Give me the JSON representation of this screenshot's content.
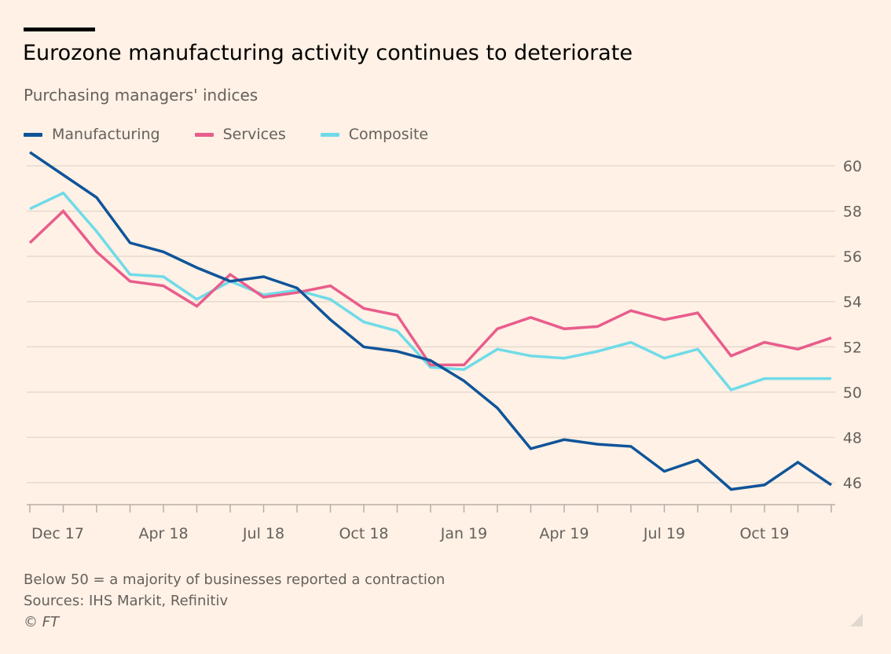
{
  "header": {
    "title": "Eurozone manufacturing activity continues to deteriorate",
    "subtitle": "Purchasing managers' indices"
  },
  "colors": {
    "background": "#fff1e5",
    "manufacturing": "#0f5499",
    "services": "#e85d8c",
    "composite": "#6fdbe8",
    "grid": "#e6d9ce",
    "axis": "#b8aea6"
  },
  "chart_data": {
    "type": "line",
    "title": "Eurozone manufacturing activity continues to deteriorate",
    "subtitle": "Purchasing managers' indices",
    "xlabel": "",
    "ylabel": "",
    "ylim": [
      45,
      61
    ],
    "y_ticks": [
      60,
      58,
      56,
      54,
      52,
      50,
      48,
      46
    ],
    "x": [
      "Dec 17",
      "Jan 18",
      "Feb 18",
      "Mar 18",
      "Apr 18",
      "May 18",
      "Jun 18",
      "Jul 18",
      "Aug 18",
      "Sep 18",
      "Oct 18",
      "Nov 18",
      "Dec 18",
      "Jan 19",
      "Feb 19",
      "Mar 19",
      "Apr 19",
      "May 19",
      "Jun 19",
      "Jul 19",
      "Aug 19",
      "Sep 19",
      "Oct 19",
      "Nov 19",
      "Dec 19"
    ],
    "x_tick_labels": [
      {
        "index": 0,
        "label": "Dec 17"
      },
      {
        "index": 4,
        "label": "Apr 18"
      },
      {
        "index": 7,
        "label": "Jul 18"
      },
      {
        "index": 10,
        "label": "Oct 18"
      },
      {
        "index": 13,
        "label": "Jan 19"
      },
      {
        "index": 16,
        "label": "Apr 19"
      },
      {
        "index": 19,
        "label": "Jul 19"
      },
      {
        "index": 22,
        "label": "Oct 19"
      }
    ],
    "legend": "top-left",
    "grid": true,
    "series": [
      {
        "name": "Manufacturing",
        "key": "manufacturing",
        "values": [
          60.6,
          59.6,
          58.6,
          56.6,
          56.2,
          55.5,
          54.9,
          55.1,
          54.6,
          53.2,
          52.0,
          51.8,
          51.4,
          50.5,
          49.3,
          47.5,
          47.9,
          47.7,
          47.6,
          46.5,
          47.0,
          45.7,
          45.9,
          46.9,
          45.9
        ]
      },
      {
        "name": "Services",
        "key": "services",
        "values": [
          56.6,
          58.0,
          56.2,
          54.9,
          54.7,
          53.8,
          55.2,
          54.2,
          54.4,
          54.7,
          53.7,
          53.4,
          51.2,
          51.2,
          52.8,
          53.3,
          52.8,
          52.9,
          53.6,
          53.2,
          53.5,
          51.6,
          52.2,
          51.9,
          52.4
        ]
      },
      {
        "name": "Composite",
        "key": "composite",
        "values": [
          58.1,
          58.8,
          57.1,
          55.2,
          55.1,
          54.1,
          54.9,
          54.3,
          54.5,
          54.1,
          53.1,
          52.7,
          51.1,
          51.0,
          51.9,
          51.6,
          51.5,
          51.8,
          52.2,
          51.5,
          51.9,
          50.1,
          50.6,
          50.6,
          50.6
        ]
      }
    ]
  },
  "footer": {
    "note": "Below 50 = a majority of businesses reported a contraction",
    "sources": "Sources: IHS Markit, Refinitiv",
    "copyright": "© FT"
  }
}
